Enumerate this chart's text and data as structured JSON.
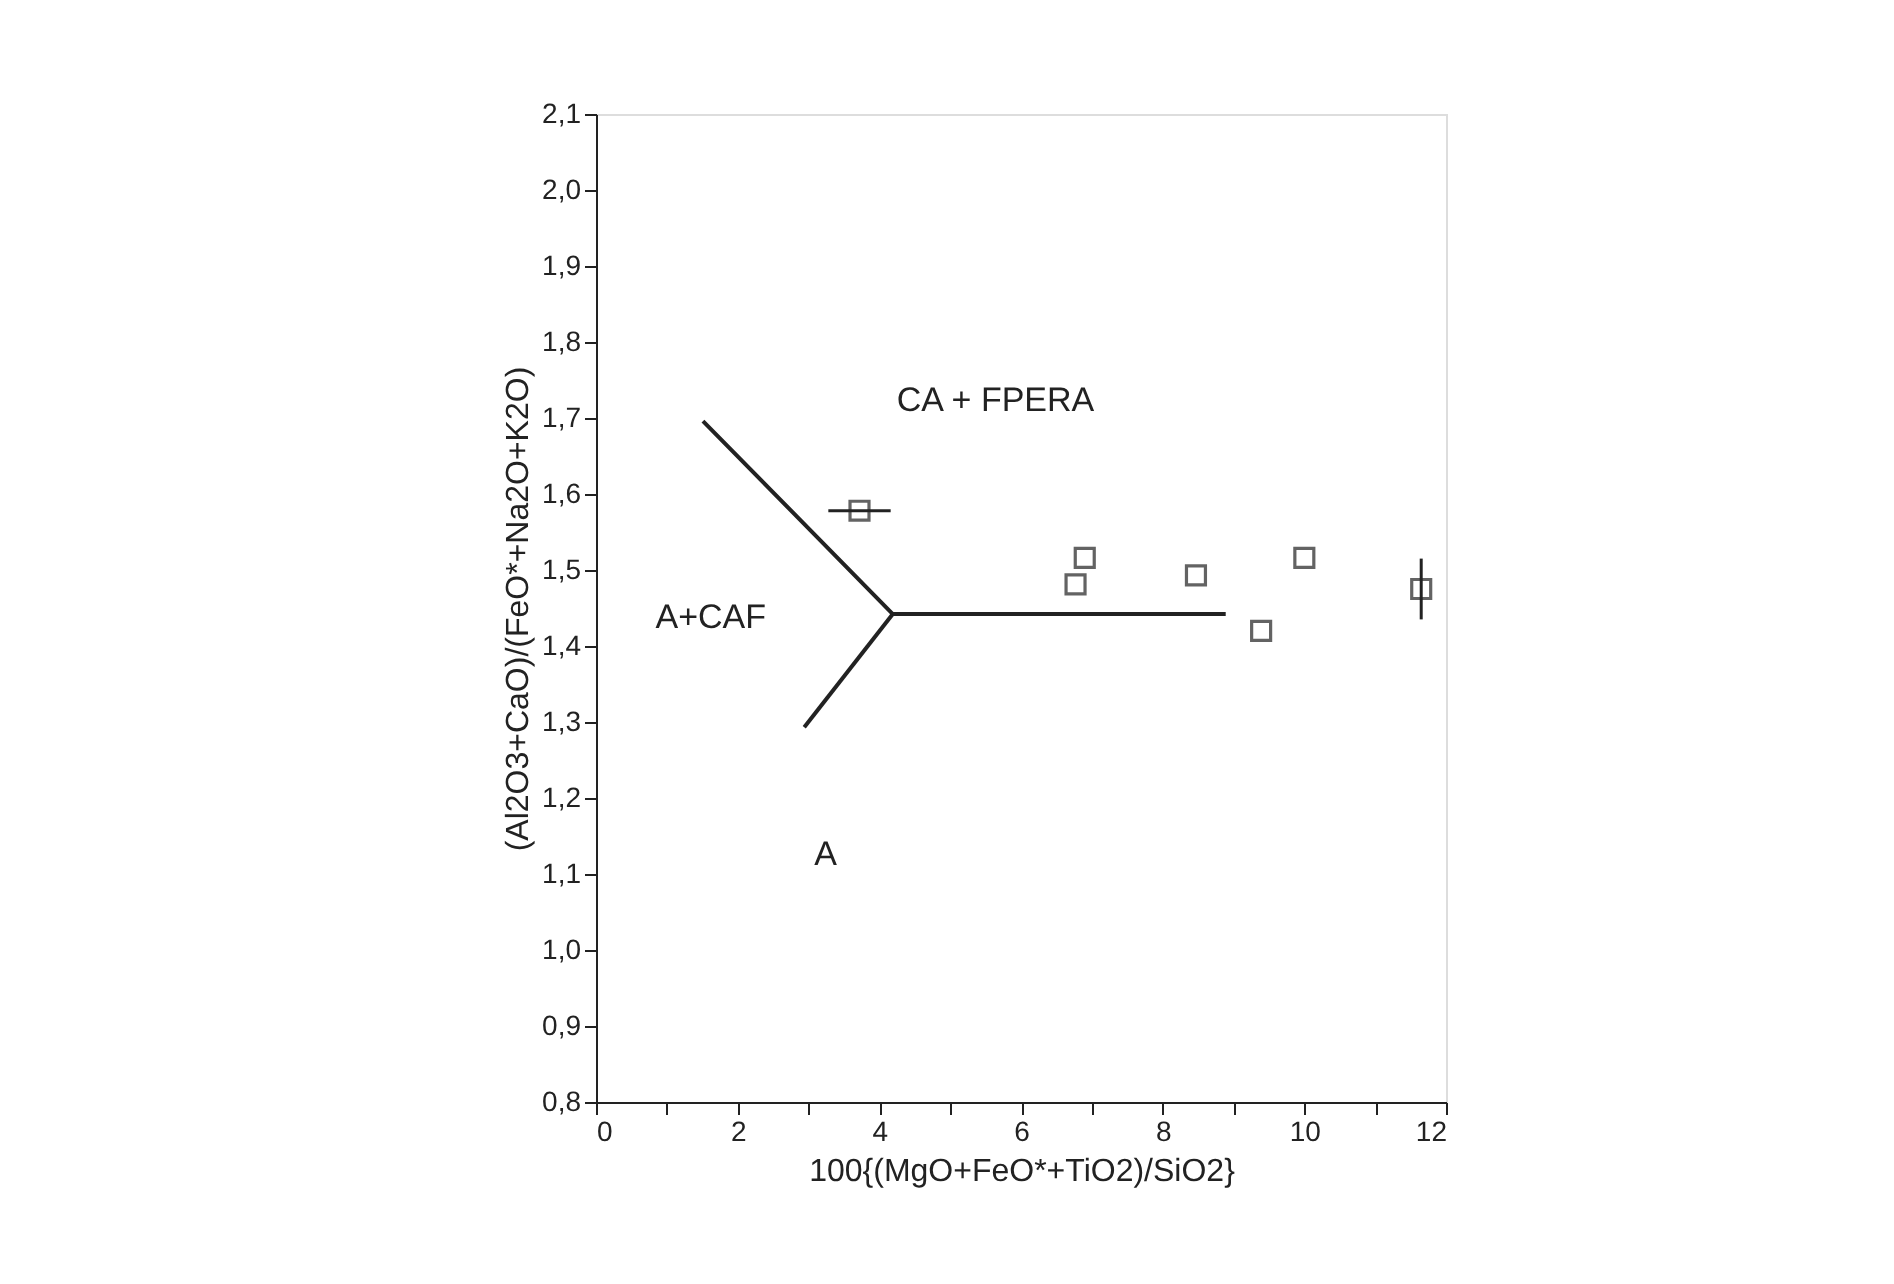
{
  "chart_data": {
    "type": "scatter",
    "xlabel": "100{(MgO+FeO*+TiO2)/SiO2}",
    "ylabel": "(Al2O3+CaO)/(FeO*+Na2O+K2O)",
    "xlim": [
      0,
      12
    ],
    "xticks": [
      0,
      {
        "value": 1,
        "label": null
      },
      2,
      {
        "value": 3,
        "label": null
      },
      4,
      {
        "value": 5,
        "label": null
      },
      6,
      {
        "value": 7,
        "label": null
      },
      8,
      {
        "value": 9,
        "label": null
      },
      10,
      {
        "value": 11,
        "label": null
      },
      12
    ],
    "ylim": [
      0.8,
      2.1
    ],
    "yticks": [
      {
        "value": 0.8,
        "label": "0,8"
      },
      {
        "value": 0.9,
        "label": "0,9"
      },
      {
        "value": 1.0,
        "label": "1,0"
      },
      {
        "value": 1.1,
        "label": "1,1"
      },
      {
        "value": 1.2,
        "label": "1,2"
      },
      {
        "value": 1.3,
        "label": "1,3"
      },
      {
        "value": 1.4,
        "label": "1,4"
      },
      {
        "value": 1.5,
        "label": "1,5"
      },
      {
        "value": 1.6,
        "label": "1,6"
      },
      {
        "value": 1.7,
        "label": "1,7"
      },
      {
        "value": 1.8,
        "label": "1,8"
      },
      {
        "value": 1.9,
        "label": "1,9"
      },
      {
        "value": 2.0,
        "label": "2,0"
      },
      {
        "value": 2.1,
        "label": "2,1"
      }
    ],
    "grid": false,
    "series": [
      {
        "color": "#222222",
        "marker": "square",
        "x": [
          3.72,
          6.77,
          6.9,
          8.47,
          9.39,
          10.0,
          11.65
        ],
        "values": [
          1.578,
          1.481,
          1.516,
          1.493,
          1.42,
          1.516,
          1.475
        ],
        "errors": [
          null,
          null,
          null,
          null,
          null,
          null,
          0.04
        ],
        "xerrors": [
          0.44,
          null,
          null,
          null,
          null,
          null,
          null
        ]
      },
      {
        "type": "line",
        "color": "#222222",
        "marker": "none",
        "line_style": "solid",
        "x": [
          1.51,
          4.19,
          8.89
        ],
        "values": [
          1.696,
          1.442,
          1.442
        ]
      },
      {
        "type": "line",
        "color": "#222222",
        "marker": "none",
        "line_style": "solid",
        "x": [
          2.94,
          4.19
        ],
        "values": [
          1.293,
          1.442
        ]
      }
    ],
    "annotations": [
      "CA   +  FPERA",
      "A+CAF",
      "A"
    ]
  }
}
